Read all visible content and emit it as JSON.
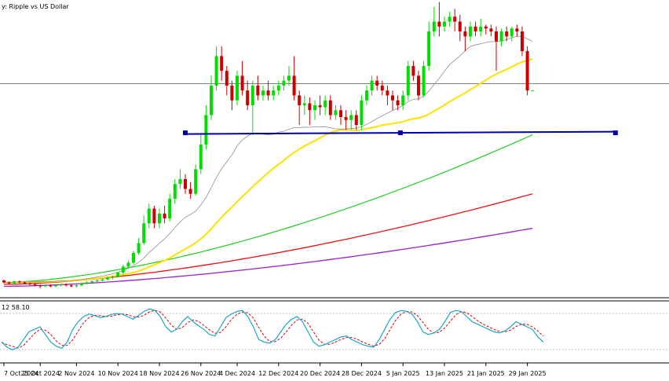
{
  "chart_data": {
    "type": "candlestick",
    "title": "y:  Ripple vs US Dollar",
    "stochastic_label": "12  58.10",
    "x_labels": [
      "7 Oct 2024",
      "25 Oct 2024",
      "2 Nov 2024",
      "10 Nov 2024",
      "18 Nov 2024",
      "26 Nov 2024",
      "4 Dec 2024",
      "12 Dec 2024",
      "20 Dec 2024",
      "28 Dec 2024",
      "5 Jan 2025",
      "13 Jan 2025",
      "21 Jan 2025",
      "29 Jan 2025"
    ],
    "x_label_index": [
      0,
      7,
      14,
      22,
      30,
      38,
      45,
      53,
      61,
      69,
      77,
      85,
      93,
      101
    ],
    "price_scale": {
      "min": 0.4,
      "max": 3.25
    },
    "horizontal_line": 2.52,
    "trendline": {
      "from_index": 35,
      "to_index": 118,
      "value": 2.02
    },
    "candles": [
      [
        0.52,
        0.5,
        0.53,
        0.49
      ],
      [
        0.5,
        0.49,
        0.51,
        0.48
      ],
      [
        0.49,
        0.51,
        0.52,
        0.48
      ],
      [
        0.51,
        0.5,
        0.52,
        0.49
      ],
      [
        0.5,
        0.49,
        0.51,
        0.48
      ],
      [
        0.49,
        0.48,
        0.5,
        0.47
      ],
      [
        0.48,
        0.47,
        0.49,
        0.46
      ],
      [
        0.47,
        0.46,
        0.48,
        0.44
      ],
      [
        0.46,
        0.47,
        0.48,
        0.45
      ],
      [
        0.47,
        0.46,
        0.48,
        0.45
      ],
      [
        0.46,
        0.47,
        0.48,
        0.45
      ],
      [
        0.47,
        0.48,
        0.49,
        0.46
      ],
      [
        0.48,
        0.47,
        0.49,
        0.46
      ],
      [
        0.47,
        0.46,
        0.48,
        0.45
      ],
      [
        0.46,
        0.47,
        0.48,
        0.45
      ],
      [
        0.47,
        0.49,
        0.5,
        0.46
      ],
      [
        0.49,
        0.5,
        0.51,
        0.48
      ],
      [
        0.5,
        0.51,
        0.52,
        0.49
      ],
      [
        0.51,
        0.52,
        0.53,
        0.5
      ],
      [
        0.52,
        0.53,
        0.54,
        0.51
      ],
      [
        0.53,
        0.55,
        0.56,
        0.52
      ],
      [
        0.55,
        0.56,
        0.57,
        0.53
      ],
      [
        0.56,
        0.6,
        0.61,
        0.55
      ],
      [
        0.6,
        0.66,
        0.68,
        0.58
      ],
      [
        0.66,
        0.7,
        0.72,
        0.64
      ],
      [
        0.7,
        0.8,
        0.82,
        0.68
      ],
      [
        0.8,
        0.9,
        0.95,
        0.78
      ],
      [
        0.9,
        1.1,
        1.18,
        0.88
      ],
      [
        1.1,
        1.25,
        1.3,
        1.05
      ],
      [
        1.25,
        1.1,
        1.28,
        1.05
      ],
      [
        1.1,
        1.2,
        1.25,
        1.05
      ],
      [
        1.2,
        1.15,
        1.28,
        1.1
      ],
      [
        1.15,
        1.35,
        1.4,
        1.12
      ],
      [
        1.35,
        1.5,
        1.55,
        1.3
      ],
      [
        1.5,
        1.55,
        1.65,
        1.45
      ],
      [
        1.55,
        1.45,
        1.6,
        1.4
      ],
      [
        1.45,
        1.4,
        1.52,
        1.35
      ],
      [
        1.4,
        1.65,
        1.7,
        1.38
      ],
      [
        1.65,
        1.9,
        2.0,
        1.6
      ],
      [
        1.9,
        2.2,
        2.3,
        1.85
      ],
      [
        2.2,
        2.5,
        2.6,
        2.15
      ],
      [
        2.5,
        2.8,
        2.9,
        2.45
      ],
      [
        2.8,
        2.65,
        2.9,
        2.55
      ],
      [
        2.65,
        2.5,
        2.7,
        2.4
      ],
      [
        2.5,
        2.35,
        2.55,
        2.25
      ],
      [
        2.35,
        2.6,
        2.65,
        2.3
      ],
      [
        2.6,
        2.45,
        2.75,
        2.4
      ],
      [
        2.45,
        2.3,
        2.55,
        2.25
      ],
      [
        2.3,
        2.5,
        2.55,
        2.0
      ],
      [
        2.5,
        2.4,
        2.6,
        2.35
      ],
      [
        2.4,
        2.45,
        2.5,
        2.35
      ],
      [
        2.45,
        2.4,
        2.55,
        2.35
      ],
      [
        2.4,
        2.45,
        2.5,
        2.35
      ],
      [
        2.45,
        2.5,
        2.55,
        2.4
      ],
      [
        2.5,
        2.55,
        2.6,
        2.45
      ],
      [
        2.55,
        2.6,
        2.7,
        2.5
      ],
      [
        2.6,
        2.4,
        2.8,
        2.35
      ],
      [
        2.4,
        2.3,
        2.45,
        2.1
      ],
      [
        2.3,
        2.32,
        2.4,
        2.2
      ],
      [
        2.32,
        2.25,
        2.38,
        2.1
      ],
      [
        2.25,
        2.3,
        2.35,
        2.15
      ],
      [
        2.3,
        2.28,
        2.4,
        2.2
      ],
      [
        2.28,
        2.35,
        2.4,
        2.2
      ],
      [
        2.35,
        2.2,
        2.4,
        2.15
      ],
      [
        2.2,
        2.25,
        2.3,
        2.15
      ],
      [
        2.25,
        2.18,
        2.3,
        2.1
      ],
      [
        2.18,
        2.15,
        2.25,
        2.05
      ],
      [
        2.15,
        2.2,
        2.25,
        2.05
      ],
      [
        2.2,
        2.1,
        2.25,
        2.05
      ],
      [
        2.1,
        2.35,
        2.4,
        2.05
      ],
      [
        2.35,
        2.45,
        2.5,
        2.3
      ],
      [
        2.45,
        2.55,
        2.6,
        2.4
      ],
      [
        2.55,
        2.5,
        2.6,
        2.45
      ],
      [
        2.5,
        2.45,
        2.55,
        2.4
      ],
      [
        2.45,
        2.4,
        2.5,
        2.3
      ],
      [
        2.4,
        2.35,
        2.45,
        2.25
      ],
      [
        2.35,
        2.3,
        2.4,
        2.25
      ],
      [
        2.3,
        2.4,
        2.45,
        2.25
      ],
      [
        2.4,
        2.7,
        2.75,
        2.35
      ],
      [
        2.7,
        2.6,
        2.75,
        2.55
      ],
      [
        2.6,
        2.4,
        2.65,
        2.35
      ],
      [
        2.4,
        2.7,
        2.75,
        2.38
      ],
      [
        2.7,
        3.05,
        3.15,
        2.65
      ],
      [
        3.05,
        3.15,
        3.3,
        3.0
      ],
      [
        3.15,
        3.1,
        3.35,
        3.0
      ],
      [
        3.1,
        3.15,
        3.2,
        3.05
      ],
      [
        3.15,
        3.2,
        3.25,
        3.1
      ],
      [
        3.2,
        3.15,
        3.28,
        3.05
      ],
      [
        3.15,
        3.05,
        3.22,
        2.95
      ],
      [
        3.05,
        3.0,
        3.1,
        2.85
      ],
      [
        3.0,
        3.1,
        3.15,
        2.95
      ],
      [
        3.1,
        3.05,
        3.15,
        3.0
      ],
      [
        3.05,
        3.1,
        3.18,
        3.0
      ],
      [
        3.1,
        3.08,
        3.12,
        3.02
      ],
      [
        3.08,
        3.05,
        3.12,
        3.0
      ],
      [
        3.05,
        2.95,
        3.1,
        2.65
      ],
      [
        2.95,
        3.05,
        3.08,
        2.9
      ],
      [
        3.05,
        3.0,
        3.1,
        2.95
      ],
      [
        3.0,
        3.08,
        3.1,
        2.95
      ],
      [
        3.08,
        3.05,
        3.12,
        3.0
      ],
      [
        3.05,
        2.85,
        3.1,
        2.8
      ],
      [
        2.85,
        2.45,
        2.9,
        2.4
      ],
      [
        2.45,
        2.45,
        2.45,
        2.45
      ]
    ],
    "ma_thin_gray": {
      "start": 0.5,
      "end": 3.05
    },
    "ma_yellow": {
      "start": 0.5,
      "end": 2.55
    },
    "ma_green": {
      "start": 0.5,
      "end": 2.0
    },
    "ma_red": {
      "start": 0.48,
      "end": 1.4
    },
    "ma_purple": {
      "start": 0.46,
      "end": 1.05
    },
    "stoch": {
      "main": [
        30,
        20,
        15,
        20,
        35,
        50,
        55,
        60,
        45,
        30,
        22,
        18,
        30,
        55,
        70,
        80,
        85,
        82,
        78,
        80,
        84,
        86,
        85,
        80,
        75,
        82,
        90,
        95,
        92,
        80,
        60,
        50,
        55,
        70,
        80,
        70,
        62,
        55,
        45,
        42,
        60,
        78,
        85,
        90,
        92,
        80,
        60,
        35,
        30,
        28,
        35,
        50,
        65,
        75,
        80,
        70,
        50,
        30,
        22,
        25,
        30,
        35,
        40,
        42,
        35,
        30,
        25,
        22,
        20,
        35,
        55,
        75,
        88,
        92,
        90,
        85,
        70,
        50,
        45,
        48,
        55,
        70,
        88,
        92,
        90,
        80,
        70,
        65,
        60,
        55,
        50,
        48,
        52,
        60,
        70,
        65,
        60,
        55,
        40,
        30
      ]
    },
    "colors": {
      "bull": "#00dd00",
      "bear": "#cc0000",
      "ma_yellow": "#ffe100",
      "ma_green": "#22cc22",
      "ma_red": "#ee1111",
      "ma_purple": "#9922cc",
      "ma_gray": "#909090",
      "trendline": "#0000aa",
      "stoch_main": "#1aa7c9",
      "stoch_signal": "#dd0000"
    }
  }
}
